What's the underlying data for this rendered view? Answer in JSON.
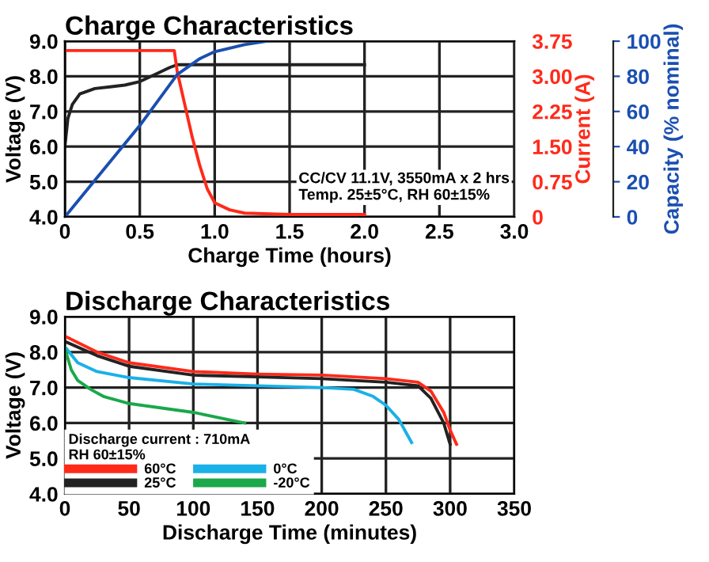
{
  "chart_data": [
    {
      "type": "line",
      "title": "Charge Characteristics",
      "xlabel": "Charge Time (hours)",
      "ylabel": "Voltage (V)",
      "y2label": "Current (A)",
      "y3label": "Capacity (% nominal)",
      "xlim": [
        0,
        3
      ],
      "xticks": [
        0,
        0.5,
        {
          "value": 1,
          "label": "1.0"
        },
        1.5,
        {
          "value": 2,
          "label": "2.0"
        },
        2.5,
        {
          "value": 3,
          "label": "3.0"
        }
      ],
      "ylim": [
        4,
        9
      ],
      "yticks": [
        {
          "value": 4,
          "label": "4.0"
        },
        {
          "value": 5,
          "label": "5.0"
        },
        {
          "value": 6,
          "label": "6.0"
        },
        {
          "value": 7,
          "label": "7.0"
        },
        {
          "value": 8,
          "label": "8.0"
        },
        {
          "value": 9,
          "label": "9.0"
        }
      ],
      "y2lim": [
        0,
        3.75
      ],
      "y2ticks": [
        0,
        0.75,
        {
          "value": 1.5,
          "label": "1.50"
        },
        2.25,
        {
          "value": 3,
          "label": "3.00"
        },
        3.75
      ],
      "y3lim": [
        0,
        100
      ],
      "y3ticks": [
        0,
        20,
        40,
        60,
        80,
        100
      ],
      "grid": true,
      "legend": false,
      "annotations": [
        "CC/CV 11.1V, 3550mA x 2 hrs\nTemp. 25±5°C, RH 60±15%"
      ],
      "series": [
        {
          "color": "#222222",
          "x": [
            0,
            0.02,
            0.05,
            0.1,
            0.2,
            0.3,
            0.4,
            0.5,
            0.6,
            0.7,
            0.75,
            1.0,
            2.0
          ],
          "values": [
            6.0,
            6.8,
            7.2,
            7.5,
            7.65,
            7.7,
            7.75,
            7.85,
            8.05,
            8.25,
            8.33,
            8.33,
            8.33
          ]
        },
        {
          "color": "#ff2a1a",
          "axis": "y2",
          "x": [
            0,
            0.73,
            0.75,
            0.8,
            0.85,
            0.9,
            0.95,
            1.0,
            1.1,
            1.2,
            1.5,
            2.0
          ],
          "values": [
            3.55,
            3.55,
            3.1,
            2.4,
            1.7,
            1.1,
            0.6,
            0.3,
            0.15,
            0.08,
            0.05,
            0.05
          ]
        },
        {
          "color": "#1a4fb0",
          "axis": "y3",
          "x": [
            0,
            0.5,
            0.75,
            0.9,
            1.0,
            1.2,
            1.35
          ],
          "values": [
            0,
            52,
            81,
            90,
            94,
            98,
            100
          ]
        }
      ]
    },
    {
      "type": "line",
      "title": "Discharge Characteristics",
      "xlabel": "Discharge Time (minutes)",
      "ylabel": "Voltage (V)",
      "xlim": [
        0,
        350
      ],
      "xticks": [
        0,
        50,
        100,
        150,
        200,
        250,
        300,
        350
      ],
      "ylim": [
        4,
        9
      ],
      "yticks": [
        {
          "value": 4,
          "label": "4.0"
        },
        {
          "value": 5,
          "label": "5.0"
        },
        {
          "value": 6,
          "label": "6.0"
        },
        {
          "value": 7,
          "label": "7.0"
        },
        {
          "value": 8,
          "label": "8.0"
        },
        {
          "value": 9,
          "label": "9.0"
        }
      ],
      "grid": true,
      "legend": "bottom left",
      "legend_title": "Discharge current : 710mA\nRH 60±15%",
      "series": [
        {
          "name": "60°C",
          "color": "#ff2a1a",
          "x": [
            0,
            25,
            50,
            100,
            150,
            200,
            250,
            275,
            285,
            295,
            300,
            305
          ],
          "values": [
            8.45,
            8.0,
            7.7,
            7.45,
            7.38,
            7.35,
            7.25,
            7.15,
            6.9,
            6.3,
            5.8,
            5.4
          ]
        },
        {
          "name": "25°C",
          "color": "#222222",
          "x": [
            0,
            25,
            50,
            100,
            150,
            200,
            250,
            275,
            285,
            295,
            300
          ],
          "values": [
            8.3,
            7.9,
            7.6,
            7.35,
            7.3,
            7.25,
            7.15,
            7.05,
            6.7,
            6.0,
            5.4
          ]
        },
        {
          "name": "0°C",
          "color": "#1ab0e8",
          "x": [
            0,
            10,
            25,
            50,
            100,
            150,
            200,
            225,
            240,
            250,
            260,
            270
          ],
          "values": [
            8.15,
            7.7,
            7.45,
            7.28,
            7.1,
            7.05,
            7.0,
            6.95,
            6.75,
            6.5,
            6.1,
            5.45
          ]
        },
        {
          "name": "-20°C",
          "color": "#1aa84a",
          "x": [
            0,
            5,
            10,
            20,
            30,
            50,
            100,
            140
          ],
          "values": [
            8.1,
            7.5,
            7.2,
            6.95,
            6.75,
            6.55,
            6.3,
            6.0
          ]
        }
      ]
    }
  ]
}
